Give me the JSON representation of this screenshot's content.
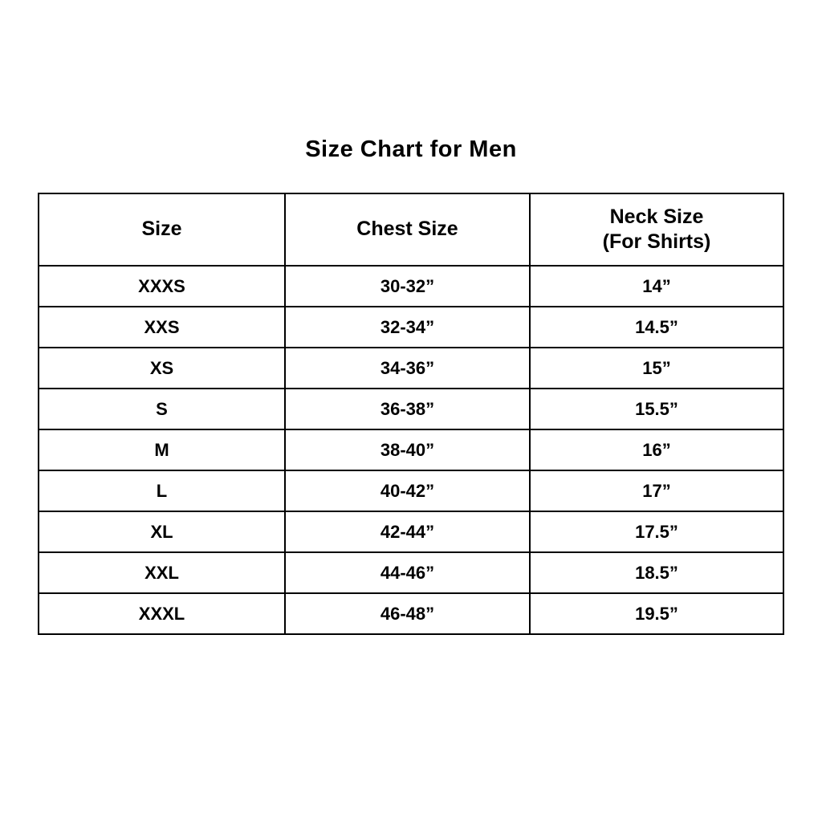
{
  "page": {
    "title": "Size Chart for Men"
  },
  "table_display": {
    "header_neck_line1": "Neck Size",
    "header_neck_line2": "(For Shirts)"
  },
  "chart_data": {
    "type": "table",
    "title": "Size Chart for Men",
    "columns": [
      "Size",
      "Chest Size",
      "Neck Size (For Shirts)"
    ],
    "rows": [
      [
        "XXXS",
        "30-32”",
        "14”"
      ],
      [
        "XXS",
        "32-34”",
        "14.5”"
      ],
      [
        "XS",
        "34-36”",
        "15”"
      ],
      [
        "S",
        "36-38”",
        "15.5”"
      ],
      [
        "M",
        "38-40”",
        "16”"
      ],
      [
        "L",
        "40-42”",
        "17”"
      ],
      [
        "XL",
        "42-44”",
        "17.5”"
      ],
      [
        "XXL",
        "44-46”",
        "18.5”"
      ],
      [
        "XXXL",
        "46-48”",
        "19.5”"
      ]
    ],
    "layout": {
      "text_color": "#000000",
      "border_color": "#000000",
      "background_color": "#ffffff",
      "grid": true,
      "text_align": "center"
    }
  }
}
